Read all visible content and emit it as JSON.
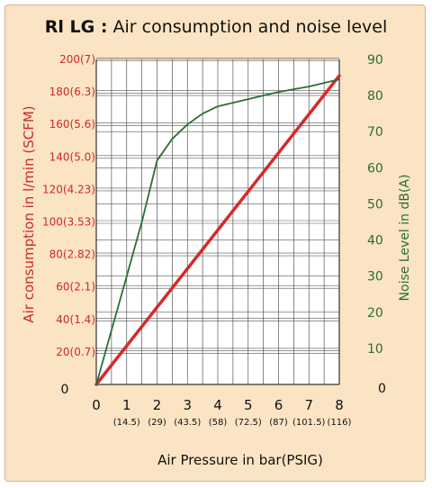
{
  "chart_data": {
    "type": "line",
    "title_bold": "Rl LG :",
    "title_rest": " Air consumption and noise level",
    "xlabel": "Air  Pressure in bar(PSIG)",
    "ylabel_left": "Air  consumption in l/min (SCFM)",
    "ylabel_right": "Noise Level in dB(A)",
    "xlim": [
      0,
      8
    ],
    "ylim_left": [
      0,
      200
    ],
    "ylim_right": [
      0,
      90
    ],
    "x_ticks": [
      {
        "value": 0,
        "label": "0",
        "sub": ""
      },
      {
        "value": 1,
        "label": "1",
        "sub": "(14.5)"
      },
      {
        "value": 2,
        "label": "2",
        "sub": "(29)"
      },
      {
        "value": 3,
        "label": "3",
        "sub": "(43.5)"
      },
      {
        "value": 4,
        "label": "4",
        "sub": "(58)"
      },
      {
        "value": 5,
        "label": "5",
        "sub": "(72.5)"
      },
      {
        "value": 6,
        "label": "6",
        "sub": "(87)"
      },
      {
        "value": 7,
        "label": "7",
        "sub": "(101.5)"
      },
      {
        "value": 8,
        "label": "8",
        "sub": "(116)"
      }
    ],
    "left_ticks": [
      {
        "value": 0,
        "label": "0"
      },
      {
        "value": 20,
        "label": "20(0.7)"
      },
      {
        "value": 40,
        "label": "40(1.4)"
      },
      {
        "value": 60,
        "label": "60(2.1)"
      },
      {
        "value": 80,
        "label": "80(2.82)"
      },
      {
        "value": 100,
        "label": "100(3.53)"
      },
      {
        "value": 120,
        "label": "120(4.23)"
      },
      {
        "value": 140,
        "label": "140(5.0)"
      },
      {
        "value": 160,
        "label": "160(5.6)"
      },
      {
        "value": 180,
        "label": "180(6.3)"
      },
      {
        "value": 200,
        "label": "200(7)"
      }
    ],
    "right_ticks": [
      {
        "value": 0,
        "label": "0"
      },
      {
        "value": 10,
        "label": "10"
      },
      {
        "value": 20,
        "label": "20"
      },
      {
        "value": 30,
        "label": "30"
      },
      {
        "value": 40,
        "label": "40"
      },
      {
        "value": 50,
        "label": "50"
      },
      {
        "value": 60,
        "label": "60"
      },
      {
        "value": 70,
        "label": "70"
      },
      {
        "value": 80,
        "label": "80"
      },
      {
        "value": 90,
        "label": "90"
      }
    ],
    "series": [
      {
        "axis": "left",
        "color": "#d62a2a",
        "x": [
          0,
          8
        ],
        "y": [
          0,
          190
        ]
      },
      {
        "axis": "right",
        "color": "#2b6e34",
        "x": [
          0,
          0.5,
          1,
          1.5,
          2,
          2.5,
          3,
          3.5,
          4,
          4.5,
          5,
          6,
          7,
          8
        ],
        "y": [
          0,
          15,
          30,
          45,
          62,
          68,
          72,
          75,
          77,
          78,
          79,
          81,
          82.5,
          84.5
        ]
      }
    ],
    "grid": true
  }
}
